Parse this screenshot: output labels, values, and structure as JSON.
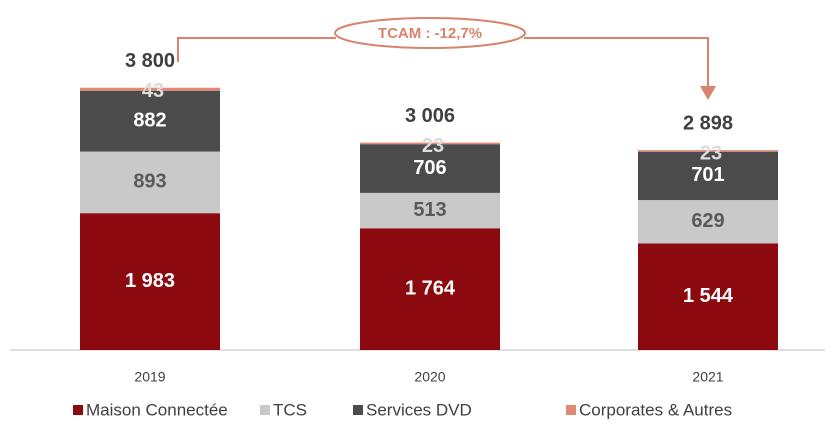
{
  "chart_data": {
    "type": "stacked_bar",
    "annotation": "TCAM : -12,7%",
    "categories": [
      "2019",
      "2020",
      "2021"
    ],
    "series": [
      {
        "name": "Maison Connectée",
        "color": "#8c0a0f",
        "values": [
          1983,
          1764,
          1544
        ],
        "value_labels": [
          "1 983",
          "1 764",
          "1 544"
        ]
      },
      {
        "name": "TCS",
        "color": "#c9c9c9",
        "values": [
          893,
          513,
          629
        ],
        "value_labels": [
          "893",
          "513",
          "629"
        ]
      },
      {
        "name": "Services DVD",
        "color": "#4b4b4b",
        "values": [
          882,
          706,
          701
        ],
        "value_labels": [
          "882",
          "706",
          "701"
        ]
      },
      {
        "name": "Corporates & Autres",
        "color": "#e08a72",
        "values": [
          43,
          23,
          23
        ],
        "value_labels": [
          "43",
          "23",
          "23"
        ]
      }
    ],
    "totals": [
      3800,
      3006,
      2898
    ],
    "total_labels": [
      "3 800",
      "3 006",
      "2 898"
    ],
    "ylim": [
      0,
      4000
    ]
  }
}
